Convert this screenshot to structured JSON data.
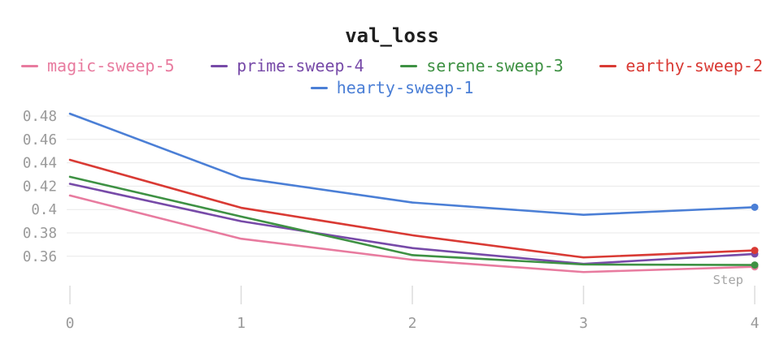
{
  "chart": {
    "title": "val_loss"
  },
  "chart_data": {
    "type": "line",
    "title": "val_loss",
    "xlabel": "Step",
    "ylabel": "",
    "grid": true,
    "legend_position": "top",
    "x": [
      0,
      1,
      2,
      3,
      4
    ],
    "x_tick_labels": [
      "0",
      "1",
      "2",
      "3",
      "4"
    ],
    "y_ticks": [
      0.48,
      0.46,
      0.44,
      0.42,
      0.4,
      0.38,
      0.36
    ],
    "y_tick_labels": [
      "0.48",
      "0.46",
      "0.44",
      "0.42",
      "0.4",
      "0.38",
      "0.36"
    ],
    "ylim": [
      0.34,
      0.49
    ],
    "axis_color": "#9a9a9a",
    "grid_color": "#e8e8e8",
    "tick_mark_color": "#dcdcdc",
    "step_label_color": "#a6a6a6",
    "series": [
      {
        "name": "magic-sweep-5",
        "color": "#e87b9f",
        "values": [
          0.412,
          0.375,
          0.357,
          0.3465,
          0.351
        ]
      },
      {
        "name": "prime-sweep-4",
        "color": "#774aa8",
        "values": [
          0.422,
          0.39,
          0.367,
          0.3535,
          0.362
        ]
      },
      {
        "name": "serene-sweep-3",
        "color": "#3e9143",
        "values": [
          0.428,
          0.394,
          0.361,
          0.353,
          0.3525
        ]
      },
      {
        "name": "earthy-sweep-2",
        "color": "#d93a34",
        "values": [
          0.4425,
          0.4015,
          0.378,
          0.359,
          0.365
        ]
      },
      {
        "name": "hearty-sweep-1",
        "color": "#4b7fd6",
        "values": [
          0.482,
          0.427,
          0.406,
          0.3955,
          0.402
        ]
      }
    ]
  }
}
